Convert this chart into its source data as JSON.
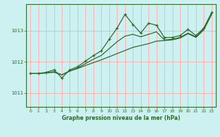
{
  "title": "Graphe pression niveau de la mer (hPa)",
  "background_color": "#cdf0f0",
  "grid_color": "#ffaaaa",
  "line_color": "#2d6a2d",
  "xlim": [
    -0.5,
    23.5
  ],
  "ylim": [
    1010.55,
    1013.85
  ],
  "yticks": [
    1011,
    1012,
    1013
  ],
  "xticks": [
    0,
    1,
    2,
    3,
    4,
    5,
    6,
    7,
    8,
    9,
    10,
    11,
    12,
    13,
    14,
    15,
    16,
    17,
    18,
    19,
    20,
    21,
    22,
    23
  ],
  "y_main": [
    1011.62,
    1011.62,
    1011.66,
    1011.74,
    1011.48,
    1011.74,
    1011.84,
    1012.02,
    1012.2,
    1012.35,
    1012.72,
    1013.08,
    1013.52,
    1013.2,
    1012.92,
    1013.24,
    1013.17,
    1012.78,
    1012.78,
    1012.84,
    1013.04,
    1012.84,
    1013.08,
    1013.58
  ],
  "y_low": [
    1011.62,
    1011.62,
    1011.64,
    1011.66,
    1011.58,
    1011.7,
    1011.78,
    1011.88,
    1011.97,
    1012.06,
    1012.16,
    1012.26,
    1012.36,
    1012.46,
    1012.52,
    1012.58,
    1012.66,
    1012.68,
    1012.7,
    1012.76,
    1012.9,
    1012.78,
    1013.02,
    1013.52
  ],
  "y_high": [
    1011.62,
    1011.62,
    1011.64,
    1011.68,
    1011.58,
    1011.7,
    1011.8,
    1011.94,
    1012.08,
    1012.2,
    1012.42,
    1012.64,
    1012.82,
    1012.88,
    1012.8,
    1012.88,
    1012.96,
    1012.7,
    1012.72,
    1012.78,
    1012.92,
    1012.8,
    1013.05,
    1013.55
  ]
}
